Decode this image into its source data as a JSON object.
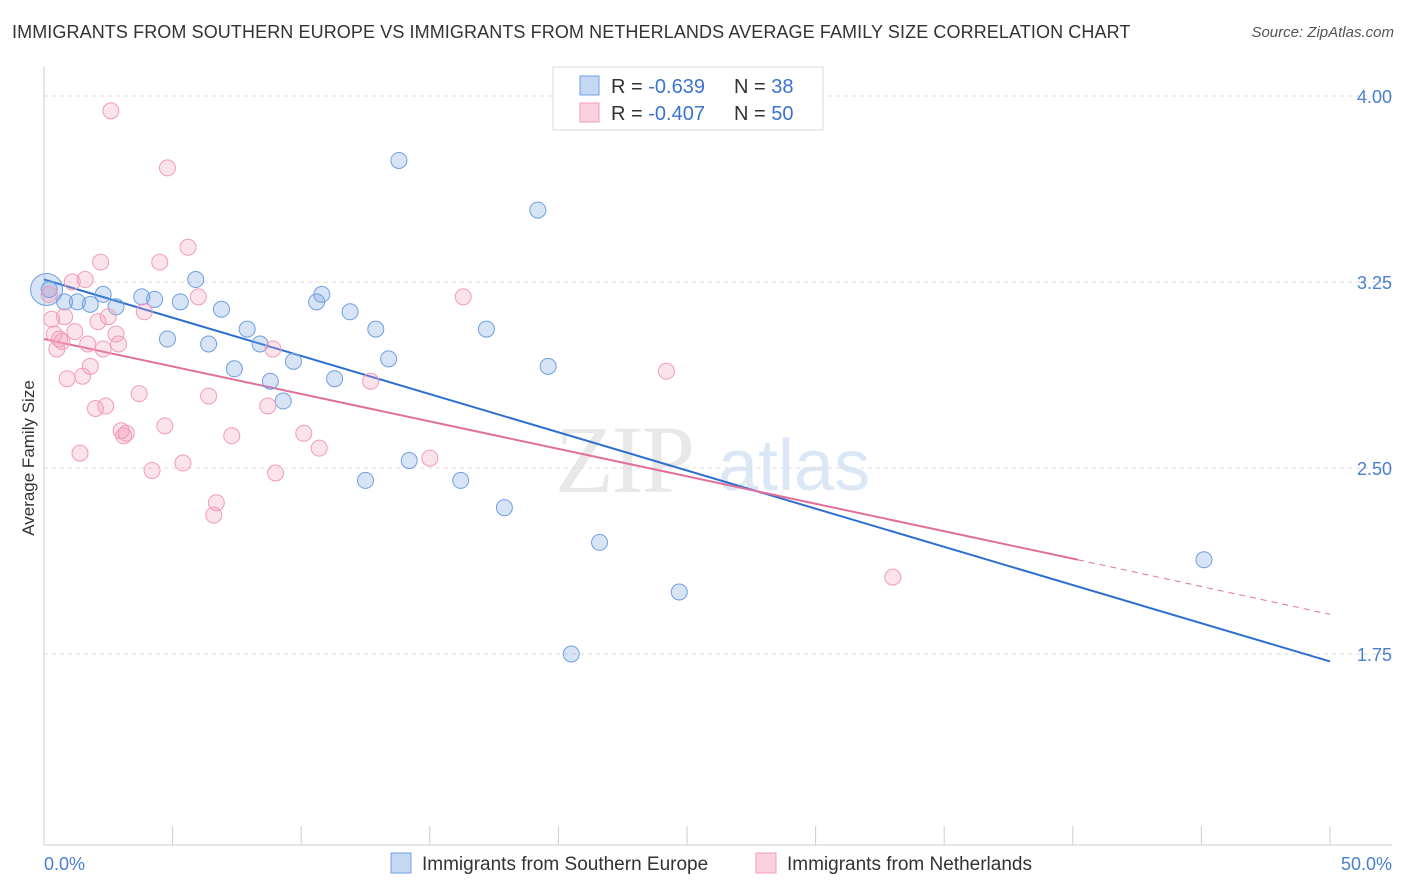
{
  "header": {
    "title": "IMMIGRANTS FROM SOUTHERN EUROPE VS IMMIGRANTS FROM NETHERLANDS AVERAGE FAMILY SIZE CORRELATION CHART",
    "source": "Source: ZipAtlas.com"
  },
  "watermark": {
    "zip": "ZIP",
    "atlas": "atlas"
  },
  "colors": {
    "blue": "#6f9fe0",
    "blue_line": "#2d6fd0",
    "pink": "#f29bb8",
    "pink_line": "#e0709a",
    "tick_text": "#4a7fd0"
  },
  "legend": {
    "entries": [
      {
        "r_label": "R = ",
        "r_value": "-0.639",
        "n_label": "N = ",
        "n_value": "38"
      },
      {
        "r_label": "R = ",
        "r_value": "-0.407",
        "n_label": "N = ",
        "n_value": "50"
      }
    ]
  },
  "bottom_legend": {
    "series1": "Immigrants from Southern Europe",
    "series2": "Immigrants from Netherlands"
  },
  "chart_data": {
    "type": "scatter",
    "title": "IMMIGRANTS FROM SOUTHERN EUROPE VS IMMIGRANTS FROM NETHERLANDS AVERAGE FAMILY SIZE CORRELATION CHART",
    "xlabel": "",
    "ylabel": "Average Family Size",
    "xlim": [
      0,
      50
    ],
    "ylim": [
      1.0,
      4.1
    ],
    "x_tick_labels": [
      "0.0%",
      "50.0%"
    ],
    "y_ticks": [
      1.75,
      2.5,
      3.25,
      4.0
    ],
    "y_tick_labels": [
      "1.75",
      "2.50",
      "3.25",
      "4.00"
    ],
    "grid": "horizontal dashed",
    "legend_position": "top-center",
    "series": [
      {
        "name": "Immigrants from Southern Europe",
        "color": "#6f9fe0",
        "R": -0.639,
        "N": 38,
        "trend": {
          "x": [
            0,
            50
          ],
          "y": [
            3.26,
            1.72
          ]
        },
        "points": [
          [
            0.2,
            3.22
          ],
          [
            0.8,
            3.17
          ],
          [
            1.3,
            3.17
          ],
          [
            1.8,
            3.16
          ],
          [
            2.3,
            3.2
          ],
          [
            2.8,
            3.15
          ],
          [
            3.8,
            3.19
          ],
          [
            4.3,
            3.18
          ],
          [
            4.8,
            3.02
          ],
          [
            5.3,
            3.17
          ],
          [
            5.9,
            3.26
          ],
          [
            6.4,
            3.0
          ],
          [
            6.9,
            3.14
          ],
          [
            7.4,
            2.9
          ],
          [
            7.9,
            3.06
          ],
          [
            8.4,
            3.0
          ],
          [
            8.8,
            2.85
          ],
          [
            9.3,
            2.77
          ],
          [
            9.7,
            2.93
          ],
          [
            10.6,
            3.17
          ],
          [
            10.8,
            3.2
          ],
          [
            11.3,
            2.86
          ],
          [
            11.9,
            3.13
          ],
          [
            12.5,
            2.45
          ],
          [
            12.9,
            3.06
          ],
          [
            13.4,
            2.94
          ],
          [
            13.8,
            3.74
          ],
          [
            14.2,
            2.53
          ],
          [
            16.2,
            2.45
          ],
          [
            17.2,
            3.06
          ],
          [
            17.9,
            2.34
          ],
          [
            19.2,
            3.54
          ],
          [
            19.6,
            2.91
          ],
          [
            20.5,
            1.75
          ],
          [
            21.6,
            2.2
          ],
          [
            24.7,
            2.0
          ],
          [
            45.1,
            2.13
          ],
          [
            0.1,
            3.22
          ]
        ]
      },
      {
        "name": "Immigrants from Netherlands",
        "color": "#f29bb8",
        "R": -0.407,
        "N": 50,
        "trend": {
          "x": [
            0,
            40.2
          ],
          "y": [
            3.02,
            2.13
          ]
        },
        "trend_dashed": {
          "x": [
            40.2,
            50
          ],
          "y": [
            2.13,
            1.91
          ]
        },
        "points": [
          [
            0.2,
            3.2
          ],
          [
            0.3,
            3.1
          ],
          [
            0.4,
            3.04
          ],
          [
            0.5,
            2.98
          ],
          [
            0.7,
            3.01
          ],
          [
            0.8,
            3.11
          ],
          [
            0.9,
            2.86
          ],
          [
            1.1,
            3.25
          ],
          [
            1.2,
            3.05
          ],
          [
            1.5,
            2.87
          ],
          [
            1.6,
            3.26
          ],
          [
            1.7,
            3.0
          ],
          [
            1.8,
            2.91
          ],
          [
            2.0,
            2.74
          ],
          [
            2.1,
            3.09
          ],
          [
            2.2,
            3.33
          ],
          [
            2.3,
            2.98
          ],
          [
            2.4,
            2.75
          ],
          [
            2.5,
            3.11
          ],
          [
            2.6,
            3.94
          ],
          [
            2.8,
            3.04
          ],
          [
            2.9,
            3.0
          ],
          [
            3.0,
            2.65
          ],
          [
            3.1,
            2.63
          ],
          [
            3.2,
            2.64
          ],
          [
            3.7,
            2.8
          ],
          [
            3.9,
            3.13
          ],
          [
            4.2,
            2.49
          ],
          [
            4.5,
            3.33
          ],
          [
            4.7,
            2.67
          ],
          [
            4.8,
            3.71
          ],
          [
            5.4,
            2.52
          ],
          [
            5.6,
            3.39
          ],
          [
            6.0,
            3.19
          ],
          [
            6.4,
            2.79
          ],
          [
            6.7,
            2.36
          ],
          [
            6.6,
            2.31
          ],
          [
            7.3,
            2.63
          ],
          [
            8.7,
            2.75
          ],
          [
            8.9,
            2.98
          ],
          [
            9.0,
            2.48
          ],
          [
            10.1,
            2.64
          ],
          [
            10.7,
            2.58
          ],
          [
            12.7,
            2.85
          ],
          [
            15.0,
            2.54
          ],
          [
            16.3,
            3.19
          ],
          [
            24.2,
            2.89
          ],
          [
            33.0,
            2.06
          ],
          [
            1.4,
            2.56
          ],
          [
            0.6,
            3.02
          ]
        ]
      }
    ]
  }
}
